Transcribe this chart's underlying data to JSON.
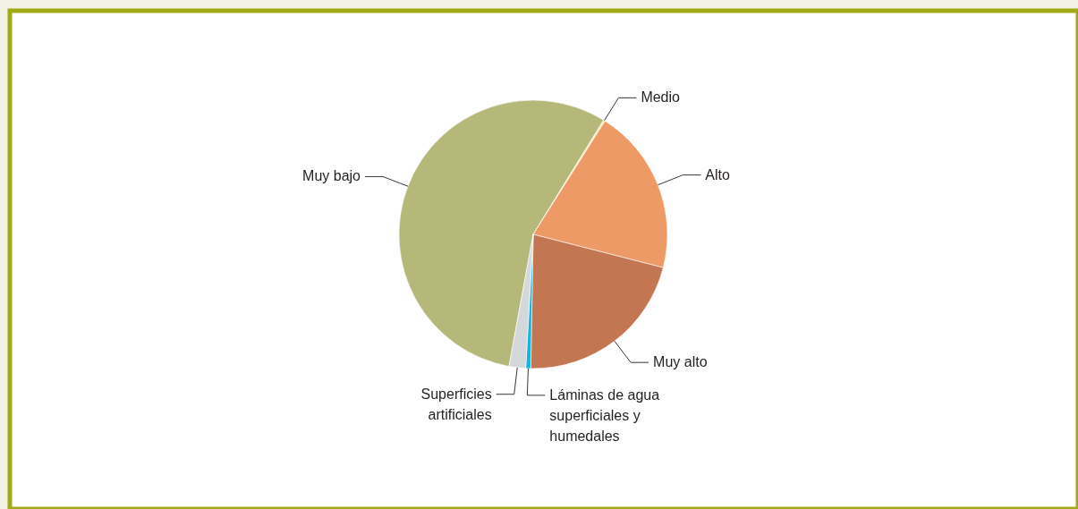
{
  "chart_data": {
    "type": "pie",
    "categories": [
      "Muy bajo",
      "Medio",
      "Alto",
      "Muy alto",
      "Láminas de agua superficiales y humedales",
      "Superficies artificiales"
    ],
    "values": [
      55.9,
      0.2,
      20.0,
      21.3,
      0.6,
      2.0
    ],
    "colors": [
      "#b5b878",
      "#f2e6a6",
      "#ee9a66",
      "#c27652",
      "#17b5dd",
      "#d5d8db"
    ]
  }
}
